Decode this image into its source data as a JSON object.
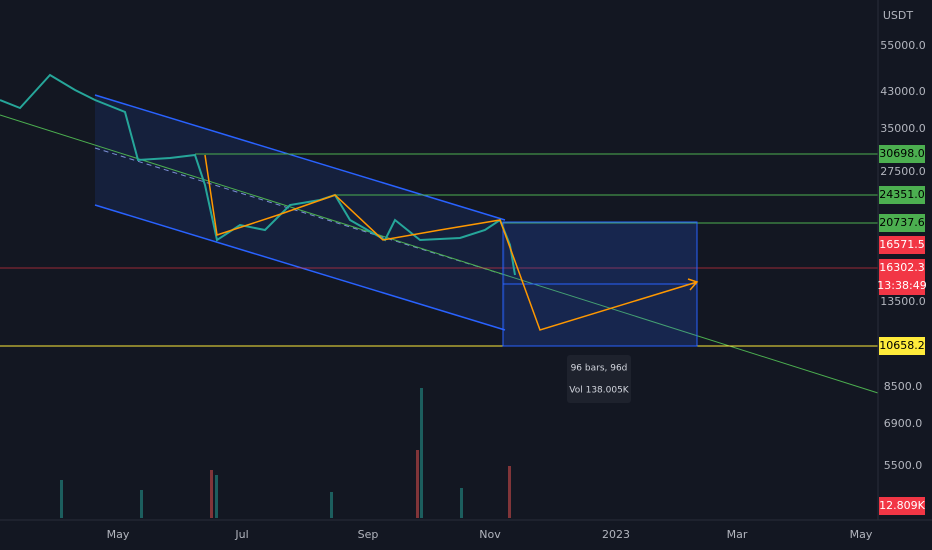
{
  "price_axis": {
    "currency": "USDT",
    "labels": [
      "55000.0",
      "43000.0",
      "35000.0",
      "27500.0",
      "13500.0",
      "8500.0",
      "6900.0",
      "5500.0"
    ]
  },
  "price_tags": {
    "level_1": "30698.0",
    "level_2": "24351.0",
    "level_3": "20737.6",
    "price_1": "16571.5",
    "price_2": "16302.3",
    "countdown": "13:38:49",
    "level_4": "10658.2",
    "volume": "12.809K"
  },
  "time_axis": {
    "labels": [
      "May",
      "Jul",
      "Sep",
      "Nov",
      "2023",
      "Mar",
      "May"
    ]
  },
  "measure_tooltip": {
    "range": "96 bars, 96d",
    "volume": "Vol 138.005K"
  }
}
